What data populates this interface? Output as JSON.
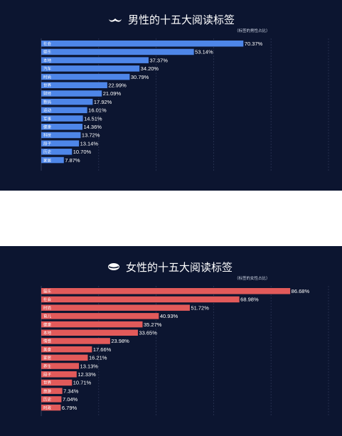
{
  "chart_data": [
    {
      "type": "bar",
      "orientation": "horizontal",
      "title": "男性的十五大阅读标签",
      "subtitle": "（标签的男性占比）",
      "icon": "mustache-icon",
      "bar_color": "#4e86e8",
      "categories": [
        "社会",
        "娱乐",
        "本地",
        "汽车",
        "时尚",
        "世界",
        "财经",
        "数码",
        "运动",
        "军事",
        "健康",
        "科技",
        "段子",
        "历史",
        "家居"
      ],
      "values": [
        70.37,
        53.14,
        37.37,
        34.2,
        30.79,
        22.99,
        21.09,
        17.92,
        16.01,
        14.51,
        14.36,
        13.72,
        13.14,
        10.7,
        7.87
      ],
      "labels": [
        "70.37%",
        "53.14%",
        "37.37%",
        "34.20%",
        "30.79%",
        "22.99%",
        "21.09%",
        "17.92%",
        "16.01%",
        "14.51%",
        "14.36%",
        "13.72%",
        "13.14%",
        "10.70%",
        "7.87%"
      ],
      "xlim": [
        0,
        100
      ],
      "grid": true
    },
    {
      "type": "bar",
      "orientation": "horizontal",
      "title": "女性的十五大阅读标签",
      "subtitle": "（标签的女性占比）",
      "icon": "lips-icon",
      "bar_color": "#e25a5a",
      "categories": [
        "娱乐",
        "社会",
        "时尚",
        "育儿",
        "健康",
        "本地",
        "情感",
        "美食",
        "家居",
        "养生",
        "段子",
        "世界",
        "旅游",
        "历史",
        "时政"
      ],
      "values": [
        86.68,
        68.98,
        51.72,
        40.93,
        35.27,
        33.65,
        23.98,
        17.66,
        16.21,
        13.13,
        12.33,
        10.71,
        7.34,
        7.04,
        6.79
      ],
      "labels": [
        "86.68%",
        "68.98%",
        "51.72%",
        "40.93%",
        "35.27%",
        "33.65%",
        "23.98%",
        "17.66%",
        "16.21%",
        "13.13%",
        "12.33%",
        "10.71%",
        "7.34%",
        "7.04%",
        "6.79%"
      ],
      "xlim": [
        0,
        100
      ],
      "grid": true
    }
  ]
}
